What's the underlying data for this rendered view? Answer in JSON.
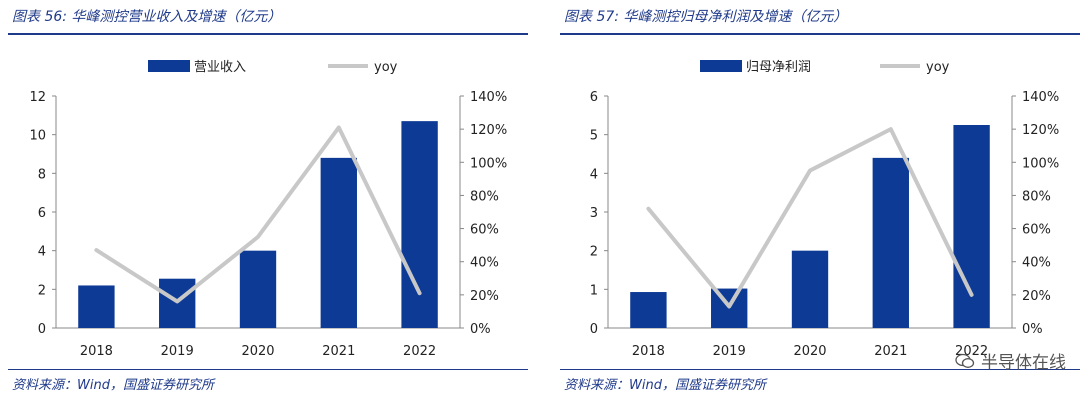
{
  "colors": {
    "bar": "#0d3a94",
    "line": "#c8c8c8",
    "title": "#1f3a8a"
  },
  "charts": [
    {
      "title": "图表 56:  华峰测控营业收入及增速（亿元）",
      "source": "资料来源：Wind，国盛证券研究所",
      "chart_data": {
        "type": "bar",
        "categories": [
          "2018",
          "2019",
          "2020",
          "2021",
          "2022"
        ],
        "series": [
          {
            "name": "营业收入",
            "kind": "bar",
            "axis": "left",
            "values": [
              2.2,
              2.55,
              4.0,
              8.8,
              10.7
            ]
          },
          {
            "name": "yoy",
            "kind": "line",
            "axis": "right",
            "values": [
              0.47,
              0.16,
              0.55,
              1.21,
              0.21
            ]
          }
        ],
        "ylim_left": [
          0,
          12
        ],
        "yticks_left": [
          "0",
          "2",
          "4",
          "6",
          "8",
          "10",
          "12"
        ],
        "ylim_right": [
          0,
          1.4
        ],
        "yticks_right": [
          "0%",
          "20%",
          "40%",
          "60%",
          "80%",
          "100%",
          "120%",
          "140%"
        ],
        "legend": "top",
        "grid": false
      }
    },
    {
      "title": "图表 57:  华峰测控归母净利润及增速（亿元）",
      "source": "资料来源：Wind，国盛证券研究所",
      "chart_data": {
        "type": "bar",
        "categories": [
          "2018",
          "2019",
          "2020",
          "2021",
          "2022"
        ],
        "series": [
          {
            "name": "归母净利润",
            "kind": "bar",
            "axis": "left",
            "values": [
              0.93,
              1.02,
              2.0,
              4.4,
              5.25
            ]
          },
          {
            "name": "yoy",
            "kind": "line",
            "axis": "right",
            "values": [
              0.72,
              0.13,
              0.95,
              1.2,
              0.2
            ]
          }
        ],
        "ylim_left": [
          0,
          6
        ],
        "yticks_left": [
          "0",
          "1",
          "2",
          "3",
          "4",
          "5",
          "6"
        ],
        "ylim_right": [
          0,
          1.4
        ],
        "yticks_right": [
          "0%",
          "20%",
          "40%",
          "60%",
          "80%",
          "100%",
          "120%",
          "140%"
        ],
        "legend": "top",
        "grid": false
      }
    }
  ],
  "watermark": {
    "text": "半导体在线"
  }
}
